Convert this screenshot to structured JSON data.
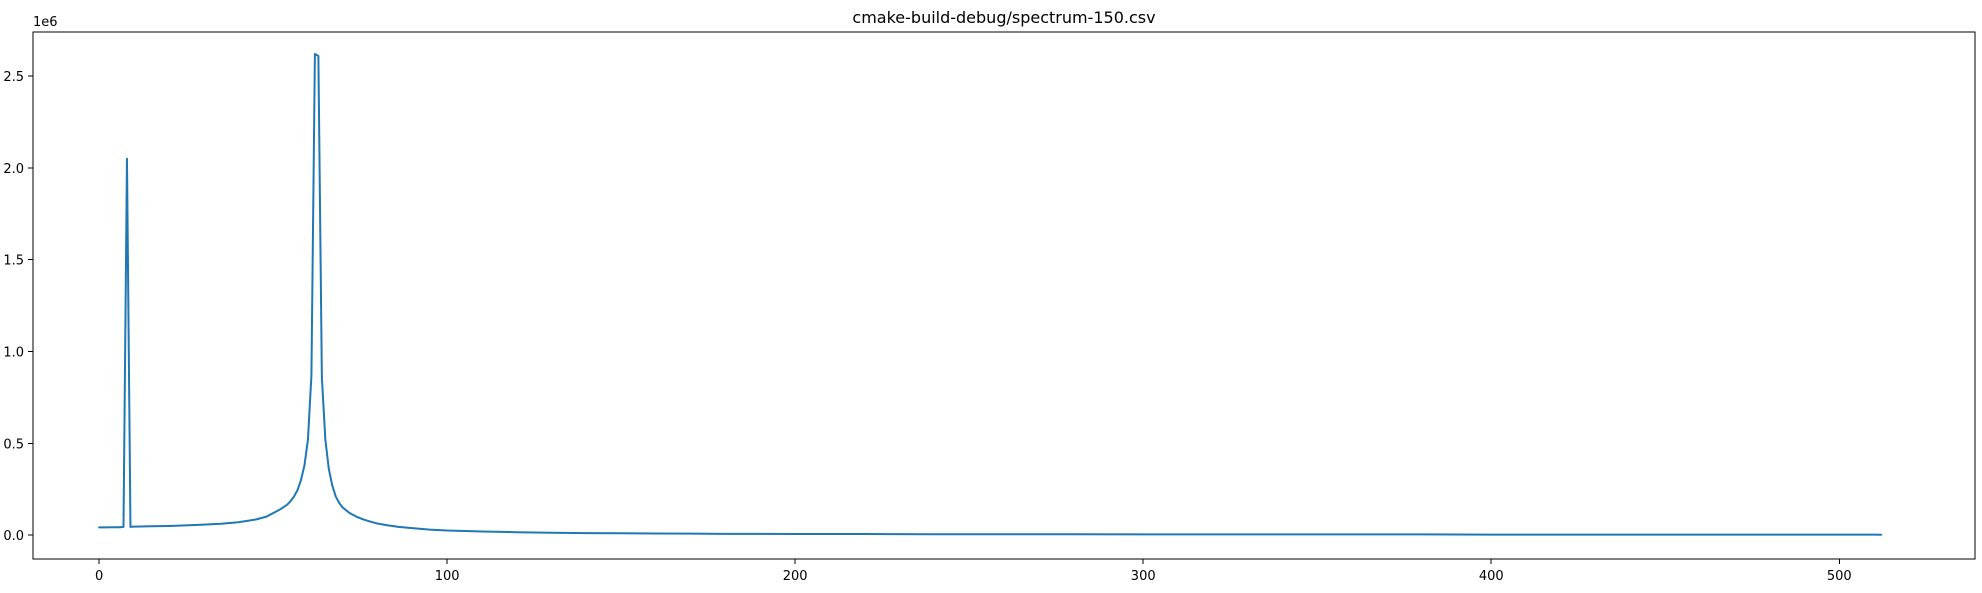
{
  "chart_data": {
    "type": "line",
    "title": "cmake-build-debug/spectrum-150.csv",
    "xlabel": "",
    "ylabel": "",
    "y_offset_label": "1e6",
    "y_scale_multiplier": 1000000,
    "xlim": [
      -19,
      539
    ],
    "ylim": [
      -0.13,
      2.74
    ],
    "x_ticks": [
      0,
      100,
      200,
      300,
      400,
      500
    ],
    "x_tick_labels": [
      "0",
      "100",
      "200",
      "300",
      "400",
      "500"
    ],
    "y_ticks": [
      0.0,
      0.5,
      1.0,
      1.5,
      2.0,
      2.5
    ],
    "y_tick_labels": [
      "0.0",
      "0.5",
      "1.0",
      "1.5",
      "2.0",
      "2.5"
    ],
    "grid": false,
    "legend": "none",
    "series": [
      {
        "color": "#1f77b4",
        "x": [
          0,
          2,
          4,
          6,
          7,
          8,
          9,
          10,
          12,
          15,
          20,
          25,
          30,
          35,
          40,
          45,
          48,
          50,
          52,
          54,
          55,
          56,
          57,
          58,
          59,
          60,
          61,
          62,
          63,
          64,
          65,
          66,
          67,
          68,
          69,
          70,
          72,
          74,
          76,
          78,
          80,
          83,
          86,
          90,
          95,
          100,
          110,
          120,
          130,
          140,
          150,
          160,
          170,
          180,
          190,
          200,
          220,
          240,
          260,
          280,
          300,
          320,
          340,
          360,
          380,
          400,
          420,
          440,
          460,
          480,
          500,
          510,
          512
        ],
        "values": [
          0.042,
          0.042,
          0.043,
          0.043,
          0.045,
          2.05,
          0.045,
          0.046,
          0.047,
          0.048,
          0.05,
          0.053,
          0.057,
          0.062,
          0.07,
          0.085,
          0.1,
          0.12,
          0.14,
          0.165,
          0.185,
          0.21,
          0.245,
          0.3,
          0.38,
          0.52,
          0.87,
          2.62,
          2.61,
          0.86,
          0.52,
          0.36,
          0.27,
          0.21,
          0.175,
          0.15,
          0.12,
          0.1,
          0.085,
          0.073,
          0.063,
          0.053,
          0.045,
          0.038,
          0.03,
          0.025,
          0.02,
          0.016,
          0.013,
          0.011,
          0.01,
          0.009,
          0.008,
          0.007,
          0.007,
          0.006,
          0.006,
          0.005,
          0.005,
          0.005,
          0.004,
          0.004,
          0.004,
          0.004,
          0.004,
          0.003,
          0.003,
          0.003,
          0.003,
          0.003,
          0.003,
          0.003,
          0.002
        ]
      }
    ]
  }
}
